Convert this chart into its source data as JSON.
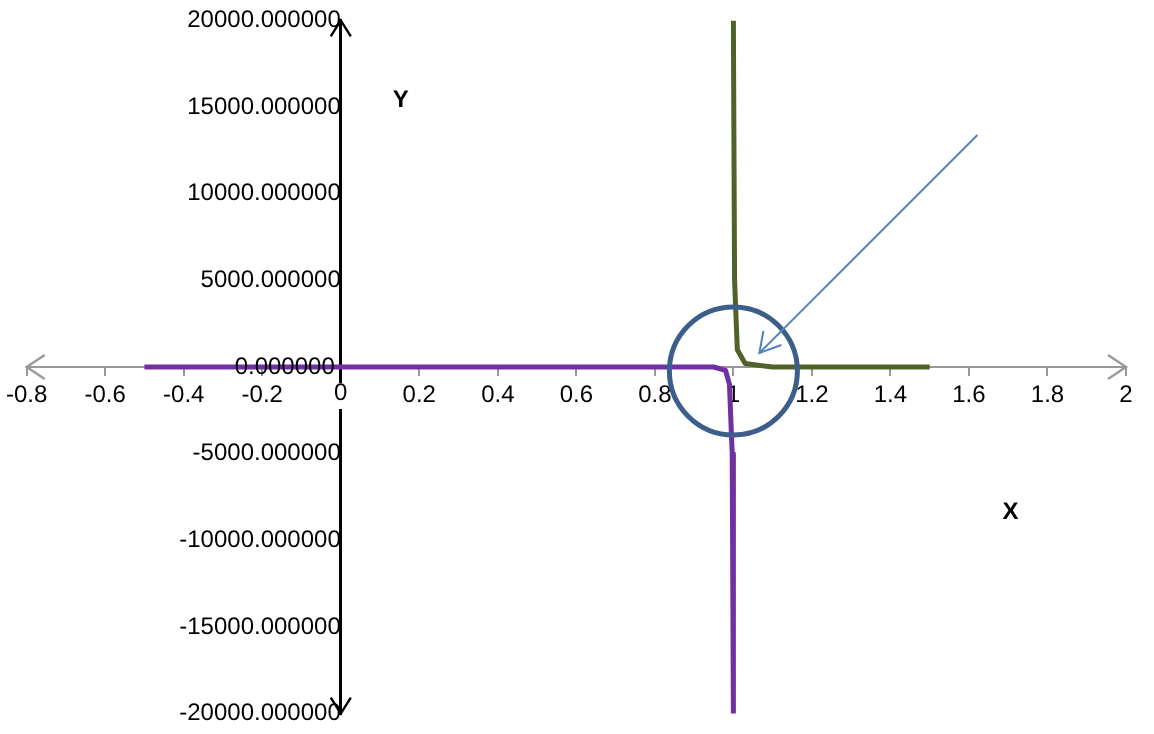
{
  "chart_data": {
    "type": "line",
    "xlabel": "X",
    "ylabel": "Y",
    "xlim": [
      -0.8,
      2
    ],
    "xticks": [
      -0.8,
      -0.6,
      -0.4,
      -0.2,
      0,
      0.2,
      0.4,
      0.6,
      0.8,
      1,
      1.2,
      1.4,
      1.6,
      1.8,
      2
    ],
    "ylim": [
      -20000,
      20000
    ],
    "yticks": [
      {
        "value": -20000,
        "label": "-20000.000000"
      },
      {
        "value": -15000,
        "label": "-15000.000000"
      },
      {
        "value": -10000,
        "label": "-10000.000000"
      },
      {
        "value": -5000,
        "label": "-5000.000000"
      },
      {
        "value": 0,
        "label": "0.000000"
      },
      {
        "value": 5000,
        "label": "5000.000000"
      },
      {
        "value": 10000,
        "label": "10000.000000"
      },
      {
        "value": 15000,
        "label": "15000.000000"
      },
      {
        "value": 20000,
        "label": "20000.000000"
      }
    ],
    "series": [
      {
        "color": "#4f6228",
        "x": [
          1.0,
          1.003,
          1.01,
          1.03,
          1.1,
          1.5
        ],
        "values": [
          20000,
          5000,
          1000,
          200,
          0,
          0
        ]
      },
      {
        "color": "#7030a0",
        "x": [
          -0.5,
          0,
          0.5,
          0.95,
          0.98,
          0.99,
          0.997,
          1.0
        ],
        "values": [
          0,
          0,
          0,
          0,
          -200,
          -1000,
          -5000,
          -20000
        ]
      }
    ],
    "marker": "none",
    "line_style": "solid"
  }
}
